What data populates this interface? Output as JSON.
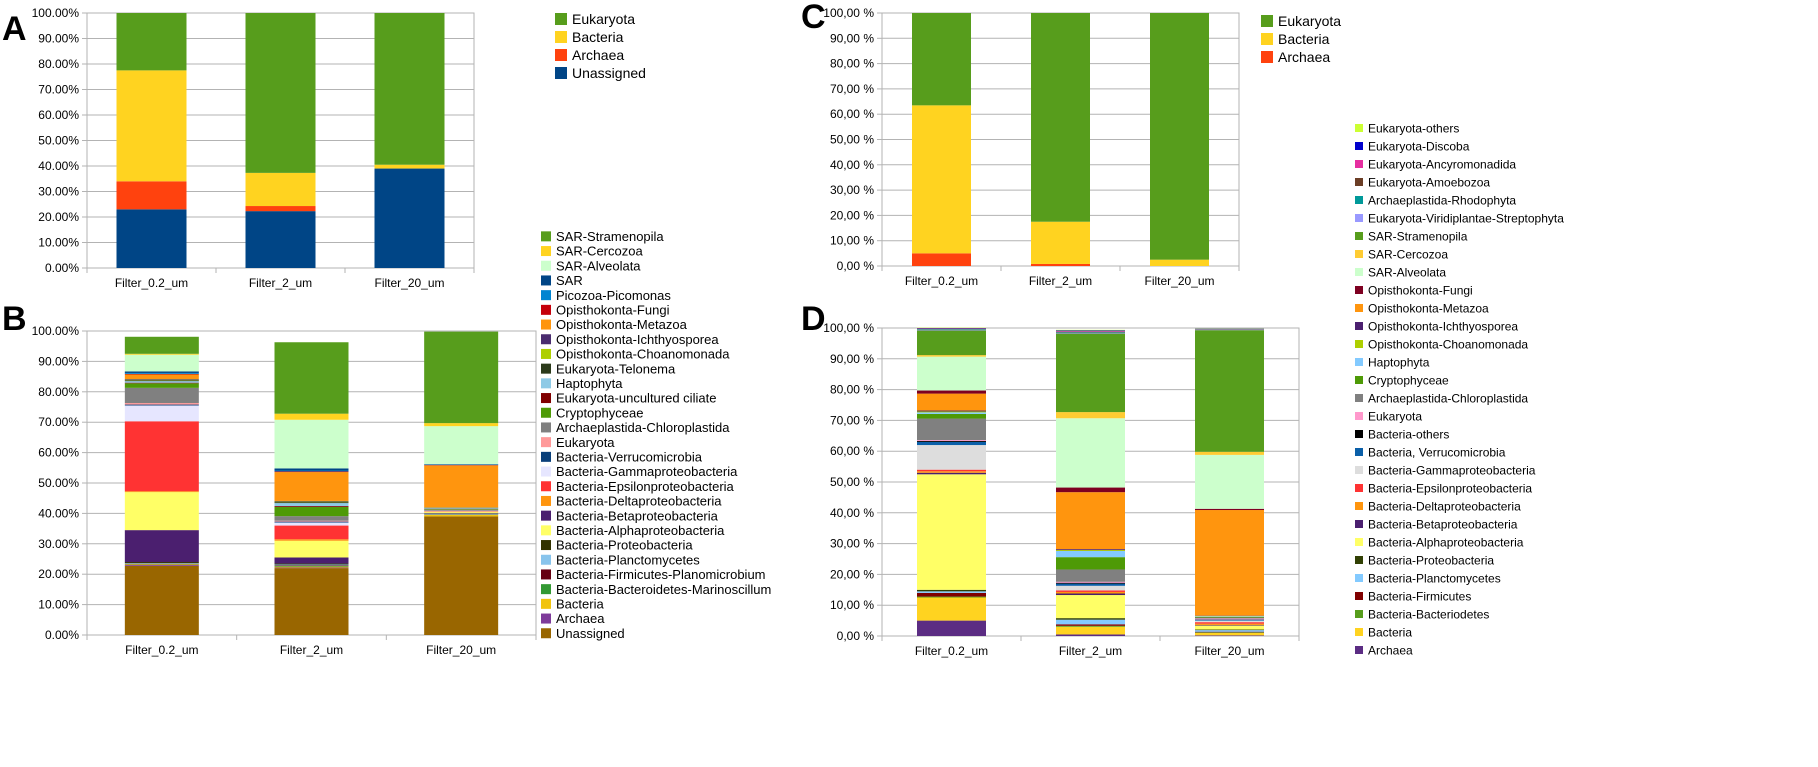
{
  "chart_data": [
    {
      "panel": "A",
      "type": "bar",
      "stacked": true,
      "categories": [
        "Filter_0.2_um",
        "Filter_2_um",
        "Filter_20_um"
      ],
      "y_ticks": [
        "0.00%",
        "10.00%",
        "20.00%",
        "30.00%",
        "40.00%",
        "50.00%",
        "60.00%",
        "70.00%",
        "80.00%",
        "90.00%",
        "100.00%"
      ],
      "ylim": [
        0,
        100
      ],
      "grid": true,
      "legend_position": "right",
      "series": [
        {
          "name": "Unassigned",
          "color": "#004586",
          "values": [
            23,
            22.3,
            39
          ]
        },
        {
          "name": "Archaea",
          "color": "#ff420e",
          "values": [
            11,
            2,
            0
          ]
        },
        {
          "name": "Bacteria",
          "color": "#ffd320",
          "values": [
            43.5,
            13,
            1.5
          ]
        },
        {
          "name": "Eukaryota",
          "color": "#579d1c",
          "values": [
            22.5,
            62.7,
            59.5
          ]
        }
      ],
      "legend": [
        "Eukaryota",
        "Bacteria",
        "Archaea",
        "Unassigned"
      ]
    },
    {
      "panel": "B",
      "type": "bar",
      "stacked": true,
      "categories": [
        "Filter_0.2_um",
        "Filter_2_um",
        "Filter_20_um"
      ],
      "y_ticks": [
        "0.00%",
        "10.00%",
        "20.00%",
        "30.00%",
        "40.00%",
        "50.00%",
        "60.00%",
        "70.00%",
        "80.00%",
        "90.00%",
        "100.00%"
      ],
      "ylim": [
        0,
        100
      ],
      "grid": true,
      "legend_position": "right",
      "series": [
        {
          "name": "Unassigned",
          "color": "#996600",
          "values": [
            22.7,
            22,
            39
          ]
        },
        {
          "name": "Archaea",
          "color": "#7e3b9a",
          "values": [
            0.3,
            0.2,
            0
          ]
        },
        {
          "name": "Bacteria",
          "color": "#f1c40f",
          "values": [
            0.2,
            0.3,
            0.5
          ]
        },
        {
          "name": "Bacteria-Bacteroidetes-Marinoscillum",
          "color": "#339933",
          "values": [
            0.1,
            0.2,
            0.1
          ]
        },
        {
          "name": "Bacteria-Firmicutes-Planomicrobium",
          "color": "#660011",
          "values": [
            0.1,
            0.2,
            0.1
          ]
        },
        {
          "name": "Bacteria-Planctomycetes",
          "color": "#88c4ec",
          "values": [
            0.2,
            0.3,
            0.2
          ]
        },
        {
          "name": "Bacteria-Proteobacteria",
          "color": "#333300",
          "values": [
            0.4,
            0.3,
            0.1
          ]
        },
        {
          "name": "Bacteria-Betaproteobacteria",
          "color": "#4b1f6f",
          "values": [
            10.5,
            2,
            0.1
          ]
        },
        {
          "name": "Bacteria-Alphaproteobacteria",
          "color": "#ffff66",
          "values": [
            12.5,
            5.5,
            0.3
          ]
        },
        {
          "name": "Bacteria-Deltaproteobacteria",
          "color": "#ff950e",
          "values": [
            0.3,
            0.5,
            0.2
          ]
        },
        {
          "name": "Bacteria-Epsilonproteobacteria",
          "color": "#ff3333",
          "values": [
            23,
            4.5,
            0.1
          ]
        },
        {
          "name": "Bacteria-Gammaproteobacteria",
          "color": "#e6e6ff",
          "values": [
            5.2,
            1,
            0.1
          ]
        },
        {
          "name": "Bacteria-Verrucomicrobia",
          "color": "#0a3f7a",
          "values": [
            0.3,
            0.3,
            0.1
          ]
        },
        {
          "name": "Eukaryota",
          "color": "#ff9999",
          "values": [
            0.5,
            0.3,
            0.1
          ]
        },
        {
          "name": "Archaeplastida-Chloroplastida",
          "color": "#808080",
          "values": [
            5,
            1.5,
            0.2
          ]
        },
        {
          "name": "Cryptophyceae",
          "color": "#4e9a06",
          "values": [
            1.5,
            3,
            0.2
          ]
        },
        {
          "name": "Eukaryota-uncultured ciliate",
          "color": "#800000",
          "values": [
            0.2,
            0.3,
            0.1
          ]
        },
        {
          "name": "Haptophyta",
          "color": "#8ecae6",
          "values": [
            0.5,
            1,
            0.2
          ]
        },
        {
          "name": "Eukaryota-Telonema",
          "color": "#2b3a1a",
          "values": [
            0.3,
            0.3,
            0.1
          ]
        },
        {
          "name": "Opisthokonta-Choanomonada",
          "color": "#aecf00",
          "values": [
            0.2,
            0.2,
            0.1
          ]
        },
        {
          "name": "Opisthokonta-Ichthyosporea",
          "color": "#4a2c6f",
          "values": [
            0.2,
            0.2,
            0.1
          ]
        },
        {
          "name": "Opisthokonta-Metazoa",
          "color": "#ff950e",
          "values": [
            1.5,
            9.5,
            13.8
          ]
        },
        {
          "name": "Opisthokonta-Fungi",
          "color": "#c5000b",
          "values": [
            0.2,
            0.2,
            0.1
          ]
        },
        {
          "name": "Picozoa-Picomonas",
          "color": "#0084d1",
          "values": [
            0.3,
            0.3,
            0.1
          ]
        },
        {
          "name": "SAR",
          "color": "#004586",
          "values": [
            0.5,
            0.7,
            0.2
          ]
        },
        {
          "name": "SAR-Alveolata",
          "color": "#ccffcc",
          "values": [
            5.5,
            16,
            12.5
          ]
        },
        {
          "name": "SAR-Cercozoa",
          "color": "#ffd320",
          "values": [
            0.3,
            2,
            1
          ]
        },
        {
          "name": "SAR-Stramenopila",
          "color": "#579d1c",
          "values": [
            5.6,
            23.5,
            30.1
          ]
        }
      ],
      "legend": [
        "SAR-Stramenopila",
        "SAR-Cercozoa",
        "SAR-Alveolata",
        "SAR",
        "Picozoa-Picomonas",
        "Opisthokonta-Fungi",
        "Opisthokonta-Metazoa",
        "Opisthokonta-Ichthyosporea",
        "Opisthokonta-Choanomonada",
        "Eukaryota-Telonema",
        "Haptophyta",
        "Eukaryota-uncultured ciliate",
        "Cryptophyceae",
        "Archaeplastida-Chloroplastida",
        "Eukaryota",
        "Bacteria-Verrucomicrobia",
        "Bacteria-Gammaproteobacteria",
        "Bacteria-Epsilonproteobacteria",
        "Bacteria-Deltaproteobacteria",
        "Bacteria-Betaproteobacteria",
        "Bacteria-Alphaproteobacteria",
        "Bacteria-Proteobacteria",
        "Bacteria-Planctomycetes",
        "Bacteria-Firmicutes-Planomicrobium",
        "Bacteria-Bacteroidetes-Marinoscillum",
        "Bacteria",
        "Archaea",
        "Unassigned"
      ]
    },
    {
      "panel": "C",
      "type": "bar",
      "stacked": true,
      "categories": [
        "Filter_0.2_um",
        "Filter_2_um",
        "Filter_20_um"
      ],
      "y_ticks": [
        "0,00 %",
        "10,00 %",
        "20,00 %",
        "30,00 %",
        "40,00 %",
        "50,00 %",
        "60,00 %",
        "70,00 %",
        "80,00 %",
        "90,00 %",
        "100,00 %"
      ],
      "ylim": [
        0,
        100
      ],
      "grid": true,
      "legend_position": "right",
      "series": [
        {
          "name": "Archaea",
          "color": "#ff420e",
          "values": [
            5,
            0.8,
            0
          ]
        },
        {
          "name": "Bacteria",
          "color": "#ffd320",
          "values": [
            58.5,
            16.7,
            2.5
          ]
        },
        {
          "name": "Eukaryota",
          "color": "#579d1c",
          "values": [
            36.5,
            82.5,
            97.5
          ]
        }
      ],
      "legend": [
        "Eukaryota",
        "Bacteria",
        "Archaea"
      ]
    },
    {
      "panel": "D",
      "type": "bar",
      "stacked": true,
      "categories": [
        "Filter_0.2_um",
        "Filter_2_um",
        "Filter_20_um"
      ],
      "y_ticks": [
        "0,00 %",
        "10,00 %",
        "20,00 %",
        "30,00 %",
        "40,00 %",
        "50,00 %",
        "60,00 %",
        "70,00 %",
        "80,00 %",
        "90,00 %",
        "100,00 %"
      ],
      "ylim": [
        0,
        100
      ],
      "grid": true,
      "legend_position": "right",
      "series": [
        {
          "name": "Archaea",
          "color": "#5b2c83",
          "values": [
            5,
            0.5,
            0.2
          ]
        },
        {
          "name": "Bacteria",
          "color": "#ffd320",
          "values": [
            7.5,
            2.5,
            0.8
          ]
        },
        {
          "name": "Bacteria-Bacteriodetes",
          "color": "#579d1c",
          "values": [
            0.3,
            0.3,
            0.2
          ]
        },
        {
          "name": "Bacteria-Firmicutes",
          "color": "#800000",
          "values": [
            1.2,
            0.5,
            0.2
          ]
        },
        {
          "name": "Bacteria-Planctomycetes",
          "color": "#83caff",
          "values": [
            0.5,
            1.5,
            0.5
          ]
        },
        {
          "name": "Bacteria-Proteobacteria",
          "color": "#314004",
          "values": [
            0.5,
            0.5,
            0.2
          ]
        },
        {
          "name": "Bacteria-Alphaproteobacteria",
          "color": "#ffff66",
          "values": [
            37.5,
            7.5,
            1.3
          ]
        },
        {
          "name": "Bacteria-Betaproteobacteria",
          "color": "#4b1f6f",
          "values": [
            0.5,
            0.5,
            0.2
          ]
        },
        {
          "name": "Bacteria-Deltaproteobacteria",
          "color": "#ff950e",
          "values": [
            0.5,
            0.5,
            0.4
          ]
        },
        {
          "name": "Bacteria-Epsilonproteobacteria",
          "color": "#ff3333",
          "values": [
            0.5,
            0.5,
            0.5
          ]
        },
        {
          "name": "Bacteria-Gammaproteobacteria",
          "color": "#dddddd",
          "values": [
            8,
            1.5,
            0.5
          ]
        },
        {
          "name": "Bacteria, Verrucomicrobia",
          "color": "#0a5fa8",
          "values": [
            1,
            0.7,
            0.3
          ]
        },
        {
          "name": "Bacteria-others",
          "color": "#000000",
          "values": [
            0.3,
            0.3,
            0.1
          ]
        },
        {
          "name": "Eukaryota",
          "color": "#ff99cc",
          "values": [
            0.3,
            0.3,
            0.3
          ]
        },
        {
          "name": "Archaeplastida-Chloroplastida",
          "color": "#808080",
          "values": [
            7,
            4,
            0.3
          ]
        },
        {
          "name": "Cryptophyceae",
          "color": "#4e9a06",
          "values": [
            1.5,
            4,
            0.2
          ]
        },
        {
          "name": "Haptophyta",
          "color": "#83caff",
          "values": [
            0.5,
            2,
            0.2
          ]
        },
        {
          "name": "Opisthokonta-Choanomonada",
          "color": "#aecf00",
          "values": [
            0.3,
            0.3,
            0.1
          ]
        },
        {
          "name": "Opisthokonta-Ichthyosporea",
          "color": "#4b1f6f",
          "values": [
            0.3,
            0.3,
            0.1
          ]
        },
        {
          "name": "Opisthokonta-Metazoa",
          "color": "#ff950e",
          "values": [
            5.5,
            18.5,
            34.3
          ]
        },
        {
          "name": "Opisthokonta-Fungi",
          "color": "#7e0021",
          "values": [
            1,
            1.5,
            0.4
          ]
        },
        {
          "name": "SAR-Alveolata",
          "color": "#ccffcc",
          "values": [
            11,
            22.5,
            17.5
          ]
        },
        {
          "name": "SAR-Cercozoa",
          "color": "#ffcc33",
          "values": [
            0.5,
            2,
            1
          ]
        },
        {
          "name": "SAR-Stramenopila",
          "color": "#579d1c",
          "values": [
            8,
            25.5,
            39.5
          ]
        },
        {
          "name": "Eukaryota-Viridiplantae-Streptophyta",
          "color": "#9999ff",
          "values": [
            0.2,
            0.2,
            0.1
          ]
        },
        {
          "name": "Archaeplastida-Rhodophyta",
          "color": "#009999",
          "values": [
            0.2,
            0.2,
            0.1
          ]
        },
        {
          "name": "Eukaryota-Amoebozoa",
          "color": "#6b3e26",
          "values": [
            0.2,
            0.2,
            0.1
          ]
        },
        {
          "name": "Eukaryota-Ancyromonadida",
          "color": "#e62ea0",
          "values": [
            0.1,
            0.2,
            0.1
          ]
        },
        {
          "name": "Eukaryota-Discoba",
          "color": "#0000cc",
          "values": [
            0.1,
            0.2,
            0.1
          ]
        },
        {
          "name": "Eukaryota-others",
          "color": "#ccff33",
          "values": [
            0.1,
            0.2,
            0.1
          ]
        }
      ],
      "legend": [
        "Eukaryota-others",
        "Eukaryota-Discoba",
        "Eukaryota-Ancyromonadida",
        "Eukaryota-Amoebozoa",
        "Archaeplastida-Rhodophyta",
        "Eukaryota-Viridiplantae-Streptophyta",
        "SAR-Stramenopila",
        "SAR-Cercozoa",
        "SAR-Alveolata",
        "Opisthokonta-Fungi",
        "Opisthokonta-Metazoa",
        "Opisthokonta-Ichthyosporea",
        "Opisthokonta-Choanomonada",
        "Haptophyta",
        "Cryptophyceae",
        "Archaeplastida-Chloroplastida",
        "Eukaryota",
        "Bacteria-others",
        "Bacteria, Verrucomicrobia",
        "Bacteria-Gammaproteobacteria",
        "Bacteria-Epsilonproteobacteria",
        "Bacteria-Deltaproteobacteria",
        "Bacteria-Betaproteobacteria",
        "Bacteria-Alphaproteobacteria",
        "Bacteria-Proteobacteria",
        "Bacteria-Planctomycetes",
        "Bacteria-Firmicutes",
        "Bacteria-Bacteriodetes",
        "Bacteria",
        "Archaea"
      ]
    }
  ]
}
